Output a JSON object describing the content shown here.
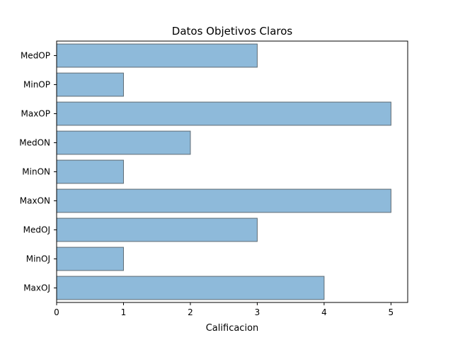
{
  "chart_data": {
    "type": "bar",
    "orientation": "horizontal",
    "title": "Datos Objetivos Claros",
    "xlabel": "Calificacion",
    "ylabel": "",
    "categories": [
      "MedOP",
      "MinOP",
      "MaxOP",
      "MedON",
      "MinON",
      "MaxON",
      "MedOJ",
      "MinOJ",
      "MaxOJ"
    ],
    "values": [
      3,
      1,
      5,
      2,
      1,
      5,
      3,
      1,
      4
    ],
    "xlim": [
      0,
      5.25
    ],
    "xticks": [
      0,
      1,
      2,
      3,
      4,
      5
    ],
    "grid": false,
    "colors": {
      "bar_fill": "#8ebada",
      "bar_edge": "#5f6c74",
      "axis": "#000000"
    }
  }
}
